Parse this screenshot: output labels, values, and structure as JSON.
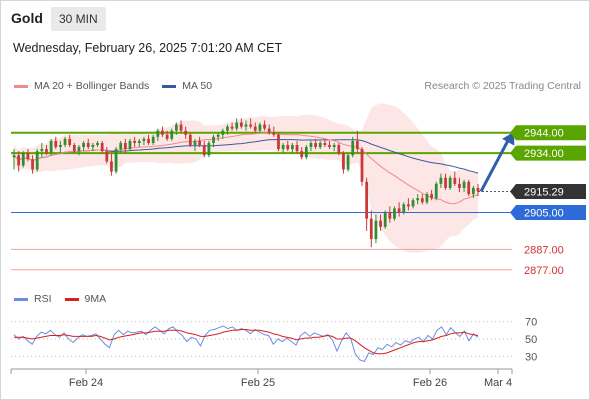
{
  "header": {
    "instrument": "Gold",
    "timeframe": "30 MIN",
    "datetime": "Wednesday, February 26, 2025 7:01:20 AM CET",
    "credit": "Research © 2025 Trading Central"
  },
  "colors": {
    "ma20": "#f08a8a",
    "bollinger_fill": "#fde2e2",
    "ma50": "#3b5a9a",
    "resistance": "#5aa500",
    "support": "#2e6bd8",
    "target_low": "#f0a0a0",
    "price_tag": "#333333",
    "arrow": "#2e5fa8",
    "candle_up": "#2f8f2f",
    "candle_down": "#c83a3a",
    "rsi": "#6b8ee0",
    "rsi_ma": "#d42020"
  },
  "legend": {
    "ma20": "MA 20 + Bollinger Bands",
    "ma50": "MA 50",
    "rsi": "RSI",
    "rsi_ma": "9MA"
  },
  "levels": [
    {
      "value": 2944.0,
      "label": "2944.00",
      "kind": "resistance"
    },
    {
      "value": 2934.0,
      "label": "2934.00",
      "kind": "resistance"
    },
    {
      "value": 2915.29,
      "label": "2915.29",
      "kind": "last"
    },
    {
      "value": 2905.0,
      "label": "2905.00",
      "kind": "support"
    },
    {
      "value": 2887.0,
      "label": "2887.00",
      "kind": "target"
    },
    {
      "value": 2877.0,
      "label": "2877.00",
      "kind": "target"
    }
  ],
  "chart_data": [
    {
      "type": "candlestick",
      "x_ticks": [
        "Feb 24",
        "Feb 25",
        "Feb 26",
        "Mar 4"
      ],
      "ylim": [
        2872,
        2960
      ],
      "forecast_arrow": {
        "from": 2915.3,
        "to": 2944.0
      },
      "candles": [
        {
          "o": 2932,
          "h": 2936,
          "l": 2926,
          "c": 2933
        },
        {
          "o": 2933,
          "h": 2935,
          "l": 2925,
          "c": 2928
        },
        {
          "o": 2928,
          "h": 2935,
          "l": 2927,
          "c": 2934
        },
        {
          "o": 2934,
          "h": 2936,
          "l": 2930,
          "c": 2931
        },
        {
          "o": 2931,
          "h": 2933,
          "l": 2924,
          "c": 2926
        },
        {
          "o": 2926,
          "h": 2936,
          "l": 2925,
          "c": 2935
        },
        {
          "o": 2935,
          "h": 2939,
          "l": 2932,
          "c": 2936
        },
        {
          "o": 2936,
          "h": 2938,
          "l": 2933,
          "c": 2934
        },
        {
          "o": 2934,
          "h": 2941,
          "l": 2933,
          "c": 2940
        },
        {
          "o": 2940,
          "h": 2942,
          "l": 2936,
          "c": 2937
        },
        {
          "o": 2937,
          "h": 2940,
          "l": 2934,
          "c": 2938
        },
        {
          "o": 2938,
          "h": 2942,
          "l": 2937,
          "c": 2941
        },
        {
          "o": 2941,
          "h": 2943,
          "l": 2937,
          "c": 2938
        },
        {
          "o": 2938,
          "h": 2939,
          "l": 2934,
          "c": 2935
        },
        {
          "o": 2935,
          "h": 2938,
          "l": 2933,
          "c": 2937
        },
        {
          "o": 2937,
          "h": 2940,
          "l": 2935,
          "c": 2939
        },
        {
          "o": 2939,
          "h": 2941,
          "l": 2936,
          "c": 2937
        },
        {
          "o": 2937,
          "h": 2939,
          "l": 2935,
          "c": 2938
        },
        {
          "o": 2938,
          "h": 2940,
          "l": 2937,
          "c": 2939
        },
        {
          "o": 2939,
          "h": 2940,
          "l": 2934,
          "c": 2935
        },
        {
          "o": 2935,
          "h": 2937,
          "l": 2929,
          "c": 2930
        },
        {
          "o": 2930,
          "h": 2934,
          "l": 2923,
          "c": 2925
        },
        {
          "o": 2925,
          "h": 2937,
          "l": 2924,
          "c": 2936
        },
        {
          "o": 2936,
          "h": 2940,
          "l": 2934,
          "c": 2939
        },
        {
          "o": 2939,
          "h": 2941,
          "l": 2934,
          "c": 2936
        },
        {
          "o": 2936,
          "h": 2941,
          "l": 2935,
          "c": 2940
        },
        {
          "o": 2940,
          "h": 2942,
          "l": 2937,
          "c": 2939
        },
        {
          "o": 2939,
          "h": 2941,
          "l": 2937,
          "c": 2940
        },
        {
          "o": 2940,
          "h": 2942,
          "l": 2938,
          "c": 2941
        },
        {
          "o": 2941,
          "h": 2943,
          "l": 2938,
          "c": 2939
        },
        {
          "o": 2939,
          "h": 2943,
          "l": 2938,
          "c": 2942
        },
        {
          "o": 2942,
          "h": 2946,
          "l": 2940,
          "c": 2945
        },
        {
          "o": 2945,
          "h": 2947,
          "l": 2942,
          "c": 2943
        },
        {
          "o": 2943,
          "h": 2945,
          "l": 2940,
          "c": 2941
        },
        {
          "o": 2941,
          "h": 2946,
          "l": 2940,
          "c": 2945
        },
        {
          "o": 2945,
          "h": 2949,
          "l": 2943,
          "c": 2948
        },
        {
          "o": 2948,
          "h": 2950,
          "l": 2944,
          "c": 2945
        },
        {
          "o": 2945,
          "h": 2947,
          "l": 2941,
          "c": 2943
        },
        {
          "o": 2943,
          "h": 2944,
          "l": 2937,
          "c": 2938
        },
        {
          "o": 2938,
          "h": 2941,
          "l": 2935,
          "c": 2940
        },
        {
          "o": 2940,
          "h": 2942,
          "l": 2937,
          "c": 2938
        },
        {
          "o": 2938,
          "h": 2940,
          "l": 2932,
          "c": 2933
        },
        {
          "o": 2933,
          "h": 2940,
          "l": 2932,
          "c": 2939
        },
        {
          "o": 2939,
          "h": 2943,
          "l": 2937,
          "c": 2942
        },
        {
          "o": 2942,
          "h": 2944,
          "l": 2940,
          "c": 2943
        },
        {
          "o": 2943,
          "h": 2946,
          "l": 2941,
          "c": 2945
        },
        {
          "o": 2945,
          "h": 2948,
          "l": 2943,
          "c": 2947
        },
        {
          "o": 2947,
          "h": 2949,
          "l": 2945,
          "c": 2946
        },
        {
          "o": 2946,
          "h": 2951,
          "l": 2945,
          "c": 2949
        },
        {
          "o": 2949,
          "h": 2951,
          "l": 2946,
          "c": 2947
        },
        {
          "o": 2947,
          "h": 2950,
          "l": 2945,
          "c": 2948
        },
        {
          "o": 2948,
          "h": 2951,
          "l": 2946,
          "c": 2947
        },
        {
          "o": 2947,
          "h": 2949,
          "l": 2944,
          "c": 2945
        },
        {
          "o": 2945,
          "h": 2949,
          "l": 2944,
          "c": 2948
        },
        {
          "o": 2948,
          "h": 2950,
          "l": 2945,
          "c": 2946
        },
        {
          "o": 2946,
          "h": 2948,
          "l": 2943,
          "c": 2944
        },
        {
          "o": 2944,
          "h": 2947,
          "l": 2942,
          "c": 2943
        },
        {
          "o": 2943,
          "h": 2944,
          "l": 2935,
          "c": 2936
        },
        {
          "o": 2936,
          "h": 2939,
          "l": 2934,
          "c": 2938
        },
        {
          "o": 2938,
          "h": 2940,
          "l": 2935,
          "c": 2936
        },
        {
          "o": 2936,
          "h": 2939,
          "l": 2934,
          "c": 2938
        },
        {
          "o": 2938,
          "h": 2940,
          "l": 2934,
          "c": 2935
        },
        {
          "o": 2935,
          "h": 2937,
          "l": 2931,
          "c": 2932
        },
        {
          "o": 2932,
          "h": 2938,
          "l": 2931,
          "c": 2937
        },
        {
          "o": 2937,
          "h": 2940,
          "l": 2935,
          "c": 2939
        },
        {
          "o": 2939,
          "h": 2941,
          "l": 2936,
          "c": 2937
        },
        {
          "o": 2937,
          "h": 2940,
          "l": 2936,
          "c": 2939
        },
        {
          "o": 2939,
          "h": 2941,
          "l": 2937,
          "c": 2938
        },
        {
          "o": 2938,
          "h": 2940,
          "l": 2936,
          "c": 2937
        },
        {
          "o": 2937,
          "h": 2939,
          "l": 2935,
          "c": 2938
        },
        {
          "o": 2938,
          "h": 2939,
          "l": 2933,
          "c": 2934
        },
        {
          "o": 2934,
          "h": 2935,
          "l": 2924,
          "c": 2926
        },
        {
          "o": 2926,
          "h": 2934,
          "l": 2925,
          "c": 2933
        },
        {
          "o": 2933,
          "h": 2942,
          "l": 2932,
          "c": 2940
        },
        {
          "o": 2940,
          "h": 2945,
          "l": 2934,
          "c": 2936
        },
        {
          "o": 2936,
          "h": 2937,
          "l": 2918,
          "c": 2920
        },
        {
          "o": 2920,
          "h": 2922,
          "l": 2896,
          "c": 2902
        },
        {
          "o": 2902,
          "h": 2906,
          "l": 2888,
          "c": 2892
        },
        {
          "o": 2892,
          "h": 2904,
          "l": 2890,
          "c": 2901
        },
        {
          "o": 2901,
          "h": 2904,
          "l": 2896,
          "c": 2898
        },
        {
          "o": 2898,
          "h": 2906,
          "l": 2897,
          "c": 2905
        },
        {
          "o": 2905,
          "h": 2908,
          "l": 2900,
          "c": 2902
        },
        {
          "o": 2902,
          "h": 2908,
          "l": 2901,
          "c": 2907
        },
        {
          "o": 2907,
          "h": 2910,
          "l": 2903,
          "c": 2905
        },
        {
          "o": 2905,
          "h": 2910,
          "l": 2904,
          "c": 2909
        },
        {
          "o": 2909,
          "h": 2912,
          "l": 2906,
          "c": 2908
        },
        {
          "o": 2908,
          "h": 2912,
          "l": 2907,
          "c": 2911
        },
        {
          "o": 2911,
          "h": 2914,
          "l": 2909,
          "c": 2912
        },
        {
          "o": 2912,
          "h": 2914,
          "l": 2909,
          "c": 2910
        },
        {
          "o": 2910,
          "h": 2915,
          "l": 2909,
          "c": 2914
        },
        {
          "o": 2914,
          "h": 2916,
          "l": 2911,
          "c": 2912
        },
        {
          "o": 2912,
          "h": 2920,
          "l": 2911,
          "c": 2919
        },
        {
          "o": 2919,
          "h": 2924,
          "l": 2917,
          "c": 2922
        },
        {
          "o": 2922,
          "h": 2924,
          "l": 2916,
          "c": 2917
        },
        {
          "o": 2917,
          "h": 2923,
          "l": 2916,
          "c": 2922
        },
        {
          "o": 2922,
          "h": 2925,
          "l": 2918,
          "c": 2919
        },
        {
          "o": 2919,
          "h": 2922,
          "l": 2915,
          "c": 2917
        },
        {
          "o": 2917,
          "h": 2921,
          "l": 2915,
          "c": 2920
        },
        {
          "o": 2920,
          "h": 2921,
          "l": 2913,
          "c": 2914
        },
        {
          "o": 2914,
          "h": 2918,
          "l": 2912,
          "c": 2917
        },
        {
          "o": 2917,
          "h": 2919,
          "l": 2913,
          "c": 2915.29
        }
      ]
    },
    {
      "type": "line",
      "title": "",
      "series_names": [
        "RSI",
        "9MA"
      ],
      "y_ticks": [
        70,
        50,
        30
      ],
      "ylim": [
        20,
        80
      ],
      "rsi": [
        55,
        50,
        53,
        48,
        44,
        53,
        58,
        56,
        60,
        55,
        52,
        57,
        50,
        46,
        51,
        55,
        53,
        54,
        56,
        50,
        44,
        40,
        55,
        60,
        55,
        59,
        57,
        58,
        59,
        55,
        60,
        64,
        60,
        56,
        62,
        64,
        58,
        54,
        47,
        52,
        50,
        42,
        54,
        60,
        61,
        63,
        65,
        62,
        64,
        60,
        62,
        60,
        56,
        61,
        58,
        55,
        54,
        44,
        50,
        47,
        51,
        47,
        43,
        54,
        58,
        53,
        57,
        55,
        53,
        55,
        49,
        36,
        48,
        57,
        51,
        33,
        26,
        24,
        34,
        32,
        40,
        38,
        44,
        41,
        46,
        43,
        48,
        46,
        50,
        52,
        47,
        54,
        50,
        60,
        64,
        55,
        63,
        57,
        53,
        59,
        48,
        56,
        52
      ],
      "rsi_ma": [
        52,
        52,
        52,
        51,
        50,
        51,
        52,
        53,
        54,
        54,
        54,
        55,
        54,
        53,
        53,
        53,
        53,
        53,
        54,
        53,
        51,
        49,
        50,
        52,
        53,
        54,
        55,
        56,
        57,
        57,
        58,
        59,
        59,
        59,
        60,
        60,
        60,
        59,
        57,
        56,
        55,
        53,
        53,
        54,
        55,
        56,
        58,
        59,
        60,
        60,
        61,
        61,
        60,
        60,
        60,
        59,
        58,
        56,
        55,
        53,
        52,
        51,
        49,
        50,
        51,
        51,
        52,
        52,
        53,
        54,
        53,
        50,
        50,
        51,
        51,
        48,
        44,
        40,
        37,
        34,
        33,
        33,
        34,
        36,
        38,
        40,
        42,
        44,
        46,
        47,
        47,
        48,
        49,
        51,
        53,
        54,
        56,
        57,
        57,
        58,
        56,
        55,
        54
      ]
    }
  ]
}
